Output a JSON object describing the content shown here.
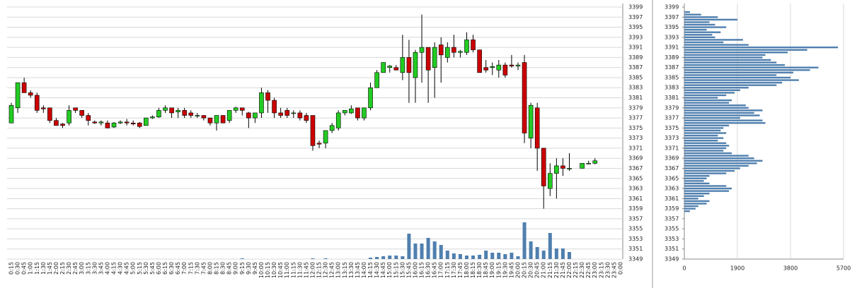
{
  "chart_data": [
    {
      "type": "candlestick",
      "categories": [
        "0:15",
        "0:30",
        "0:45",
        "1:00",
        "1:15",
        "1:30",
        "1:45",
        "2:00",
        "2:15",
        "2:30",
        "2:45",
        "3:00",
        "3:15",
        "3:30",
        "3:45",
        "4:00",
        "4:15",
        "4:30",
        "4:45",
        "5:00",
        "5:15",
        "5:30",
        "5:45",
        "6:00",
        "6:15",
        "6:30",
        "6:45",
        "7:00",
        "7:15",
        "7:30",
        "7:45",
        "8:00",
        "8:15",
        "8:30",
        "8:45",
        "9:00",
        "9:15",
        "9:30",
        "9:45",
        "10:00",
        "10:15",
        "10:30",
        "10:45",
        "11:00",
        "11:15",
        "11:30",
        "11:45",
        "12:00",
        "12:15",
        "12:30",
        "12:45",
        "13:00",
        "13:15",
        "13:30",
        "13:45",
        "14:00",
        "14:15",
        "14:30",
        "14:45",
        "15:00",
        "15:15",
        "15:30",
        "15:45",
        "16:00",
        "16:15",
        "16:30",
        "16:45",
        "17:00",
        "17:15",
        "17:30",
        "17:45",
        "18:00",
        "18:15",
        "18:30",
        "18:45",
        "19:00",
        "19:15",
        "19:30",
        "19:45",
        "20:00",
        "20:15",
        "20:30",
        "20:45",
        "21:00",
        "21:15",
        "21:30",
        "21:45",
        "22:00",
        "22:15",
        "22:30",
        "22:45",
        "23:00",
        "23:15",
        "23:30",
        "23:45",
        "0:00"
      ],
      "ohlc": [
        [
          3376,
          3380,
          3376,
          3379.5
        ],
        [
          3379,
          3384,
          3378,
          3384
        ],
        [
          3384,
          3385,
          3382,
          3382
        ],
        [
          3382,
          3382.5,
          3381,
          3381.5
        ],
        [
          3381.5,
          3382,
          3378,
          3378.5
        ],
        [
          3379,
          3379.5,
          3378,
          3378.8
        ],
        [
          3379,
          3379,
          3376,
          3376.5
        ],
        [
          3376.5,
          3377,
          3375.5,
          3375.5
        ],
        [
          3375.8,
          3376,
          3375,
          3375.5
        ],
        [
          3376,
          3379.5,
          3375.5,
          3378.5
        ],
        [
          3379,
          3379,
          3378,
          3378.5
        ],
        [
          3378.5,
          3378.5,
          3377,
          3377.5
        ],
        [
          3377.5,
          3378,
          3375.5,
          3376.5
        ],
        [
          3376.2,
          3376.5,
          3375.8,
          3376
        ],
        [
          3376,
          3376.5,
          3375.5,
          3376.2
        ],
        [
          3376,
          3376.5,
          3375,
          3375
        ],
        [
          3375.2,
          3376.2,
          3375,
          3376
        ],
        [
          3376,
          3376.5,
          3375.8,
          3376.2
        ],
        [
          3376.2,
          3376.8,
          3375.5,
          3376
        ],
        [
          3376,
          3376.5,
          3375.5,
          3375.8
        ],
        [
          3376,
          3376.2,
          3375,
          3375.3
        ],
        [
          3375.5,
          3377,
          3375.5,
          3377
        ],
        [
          3377,
          3377.5,
          3376.8,
          3377.2
        ],
        [
          3377.2,
          3379,
          3377,
          3378.5
        ],
        [
          3378.5,
          3379.5,
          3378,
          3379
        ],
        [
          3379,
          3379,
          3377,
          3378
        ],
        [
          3378.2,
          3379,
          3377,
          3378.5
        ],
        [
          3378.5,
          3379,
          3377,
          3377.5
        ],
        [
          3378,
          3378.5,
          3377,
          3377.5
        ],
        [
          3377.5,
          3378,
          3377,
          3377.5
        ],
        [
          3377.5,
          3377.5,
          3376.5,
          3377
        ],
        [
          3377,
          3377,
          3375.5,
          3376
        ],
        [
          3376,
          3377.5,
          3374.5,
          3377.5
        ],
        [
          3377.5,
          3377.5,
          3376,
          3376
        ],
        [
          3376.5,
          3378.5,
          3376,
          3378.5
        ],
        [
          3378.5,
          3379.2,
          3378,
          3379
        ],
        [
          3379,
          3379,
          3377.5,
          3378.5
        ],
        [
          3378,
          3378.2,
          3375,
          3377
        ],
        [
          3377,
          3378,
          3376,
          3378
        ],
        [
          3378,
          3383,
          3377,
          3382
        ],
        [
          3382,
          3382.5,
          3378,
          3380.5
        ],
        [
          3380.5,
          3381,
          3377,
          3378
        ],
        [
          3378,
          3379,
          3377,
          3377.5
        ],
        [
          3378.5,
          3379,
          3377,
          3377.5
        ],
        [
          3378,
          3378.5,
          3377,
          3378
        ],
        [
          3378,
          3378.5,
          3376.5,
          3377
        ],
        [
          3377.5,
          3378,
          3376,
          3376.5
        ],
        [
          3377.5,
          3377.5,
          3370.5,
          3371.5
        ],
        [
          3372,
          3372.5,
          3371,
          3371.8
        ],
        [
          3372,
          3374.5,
          3371,
          3374.5
        ],
        [
          3374.5,
          3376,
          3374,
          3375.5
        ],
        [
          3375,
          3378.5,
          3374.5,
          3378
        ],
        [
          3378,
          3378.5,
          3377.5,
          3378.5
        ],
        [
          3378,
          3379.5,
          3377.8,
          3378.8
        ],
        [
          3379,
          3379,
          3376.5,
          3377
        ],
        [
          3377,
          3379,
          3376.5,
          3379
        ],
        [
          3379,
          3384,
          3378.5,
          3383
        ],
        [
          3383,
          3386.5,
          3383,
          3386
        ],
        [
          3386,
          3388,
          3386,
          3388
        ],
        [
          3387,
          3387.5,
          3386,
          3387.3
        ],
        [
          3387,
          3387.5,
          3386.5,
          3386.5
        ],
        [
          3386,
          3393.5,
          3384.5,
          3389
        ],
        [
          3389,
          3392.5,
          3380,
          3386
        ],
        [
          3385,
          3390.5,
          3380,
          3390
        ],
        [
          3390,
          3397.5,
          3384,
          3391
        ],
        [
          3391,
          3391,
          3380,
          3386.5
        ],
        [
          3387,
          3392,
          3381,
          3391
        ],
        [
          3391.5,
          3393,
          3384,
          3389.5
        ],
        [
          3389,
          3392,
          3388,
          3391
        ],
        [
          3391,
          3393.5,
          3389,
          3390
        ],
        [
          3390,
          3390.5,
          3389,
          3390.2
        ],
        [
          3390,
          3394,
          3389.5,
          3392.5
        ],
        [
          3392.5,
          3393.5,
          3390,
          3390.5
        ],
        [
          3390.5,
          3390.5,
          3386,
          3386
        ],
        [
          3387,
          3388.5,
          3386,
          3386.5
        ],
        [
          3387,
          3388,
          3385.5,
          3387.2
        ],
        [
          3386.5,
          3388.5,
          3385,
          3387.5
        ],
        [
          3387.5,
          3388,
          3385,
          3385.5
        ],
        [
          3387.5,
          3389.5,
          3387,
          3387.3
        ],
        [
          3387.3,
          3388,
          3386.5,
          3387.5
        ],
        [
          3388,
          3389.5,
          3372,
          3374
        ],
        [
          3373,
          3380,
          3371,
          3379.5
        ],
        [
          3379,
          3380,
          3366.5,
          3371
        ],
        [
          3371,
          3371,
          3359,
          3363.5
        ],
        [
          3363,
          3368,
          3361.5,
          3366
        ],
        [
          3366,
          3369,
          3361,
          3367.5
        ],
        [
          3367.5,
          3369,
          3365.5,
          3367
        ],
        [
          3367,
          3370,
          3366.5,
          3367
        ],
        null,
        [
          3367,
          3368,
          3367,
          3368
        ],
        [
          3368,
          3368.5,
          3367.8,
          3368
        ],
        [
          3368,
          3369,
          3367.8,
          3368.5
        ],
        null,
        null,
        null,
        null
      ],
      "volume": [
        0,
        0,
        0,
        0,
        0,
        0,
        0,
        0,
        0,
        0,
        0,
        0,
        0,
        0,
        0,
        0,
        0,
        0,
        0,
        0,
        0,
        0,
        0,
        0,
        0,
        0,
        0,
        0,
        0,
        0,
        0,
        0,
        0,
        0,
        0,
        0,
        1,
        0,
        0,
        0,
        0,
        0,
        0,
        0,
        0,
        0,
        0,
        1,
        0,
        1,
        0,
        0,
        0,
        0,
        0,
        0,
        2,
        3,
        4,
        5,
        5,
        4,
        36,
        22,
        22,
        30,
        25,
        20,
        12,
        8,
        7,
        5,
        5,
        6,
        12,
        9,
        9,
        7,
        9,
        4,
        52,
        25,
        17,
        12,
        37,
        15,
        15,
        10,
        0,
        0,
        0,
        0,
        0,
        0,
        0,
        0
      ],
      "up_color": "#22cc22",
      "down_color": "#cc0000",
      "volume_color": "#4f7fae",
      "ylim": [
        3349,
        3399
      ],
      "yticks": [
        3349,
        3351,
        3353,
        3355,
        3357,
        3359,
        3361,
        3363,
        3365,
        3367,
        3369,
        3371,
        3373,
        3375,
        3377,
        3379,
        3381,
        3383,
        3385,
        3387,
        3389,
        3391,
        3393,
        3395,
        3397,
        3399
      ],
      "grid": true
    },
    {
      "type": "hbar",
      "prices": [
        3398,
        3397.5,
        3397,
        3396.5,
        3396,
        3395.5,
        3395,
        3394.5,
        3394,
        3393.5,
        3393,
        3392.5,
        3392,
        3391.5,
        3391,
        3390.5,
        3390,
        3389.5,
        3389,
        3388.5,
        3388,
        3387.5,
        3387,
        3386.5,
        3386,
        3385.5,
        3385,
        3384.5,
        3384,
        3383.5,
        3383,
        3382.5,
        3382,
        3381.5,
        3381,
        3380.5,
        3380,
        3379.5,
        3379,
        3378.5,
        3378,
        3377.5,
        3377,
        3376.5,
        3376,
        3375.5,
        3375,
        3374.5,
        3374,
        3373.5,
        3373,
        3372.5,
        3372,
        3371.5,
        3371,
        3370.5,
        3370,
        3369.5,
        3369,
        3368.5,
        3368,
        3367.5,
        3367,
        3366.5,
        3366,
        3365.5,
        3365,
        3364.5,
        3364,
        3363.5,
        3363,
        3362.5,
        3362,
        3361.5,
        3361,
        3360.5,
        3360,
        3359.5,
        3359,
        3358.5
      ],
      "values": [
        200,
        600,
        1200,
        1900,
        900,
        1100,
        1500,
        800,
        1300,
        1000,
        1100,
        2100,
        1400,
        2300,
        5500,
        4400,
        3700,
        2900,
        2800,
        3100,
        3300,
        3600,
        4800,
        4500,
        3900,
        3300,
        3800,
        4100,
        3500,
        3300,
        2300,
        2000,
        1800,
        1500,
        1200,
        1700,
        1600,
        2200,
        2300,
        2800,
        2500,
        2700,
        2000,
        2800,
        2900,
        1600,
        1400,
        1300,
        1500,
        1200,
        1400,
        1200,
        1500,
        1600,
        1500,
        1400,
        1700,
        2300,
        2500,
        2800,
        2600,
        2300,
        2000,
        1800,
        1500,
        900,
        800,
        700,
        900,
        1500,
        1700,
        1600,
        900,
        700,
        500,
        900,
        800,
        500,
        400,
        200
      ],
      "color": "#4f7fae",
      "xlim": [
        0,
        5700
      ],
      "xticks": [
        0,
        1900,
        3800,
        5700
      ],
      "ylim": [
        3349,
        3399
      ],
      "yticks": [
        3349,
        3351,
        3353,
        3355,
        3357,
        3359,
        3361,
        3363,
        3365,
        3367,
        3369,
        3371,
        3373,
        3375,
        3377,
        3379,
        3381,
        3383,
        3385,
        3387,
        3389,
        3391,
        3393,
        3395,
        3397,
        3399
      ],
      "grid": true
    }
  ]
}
